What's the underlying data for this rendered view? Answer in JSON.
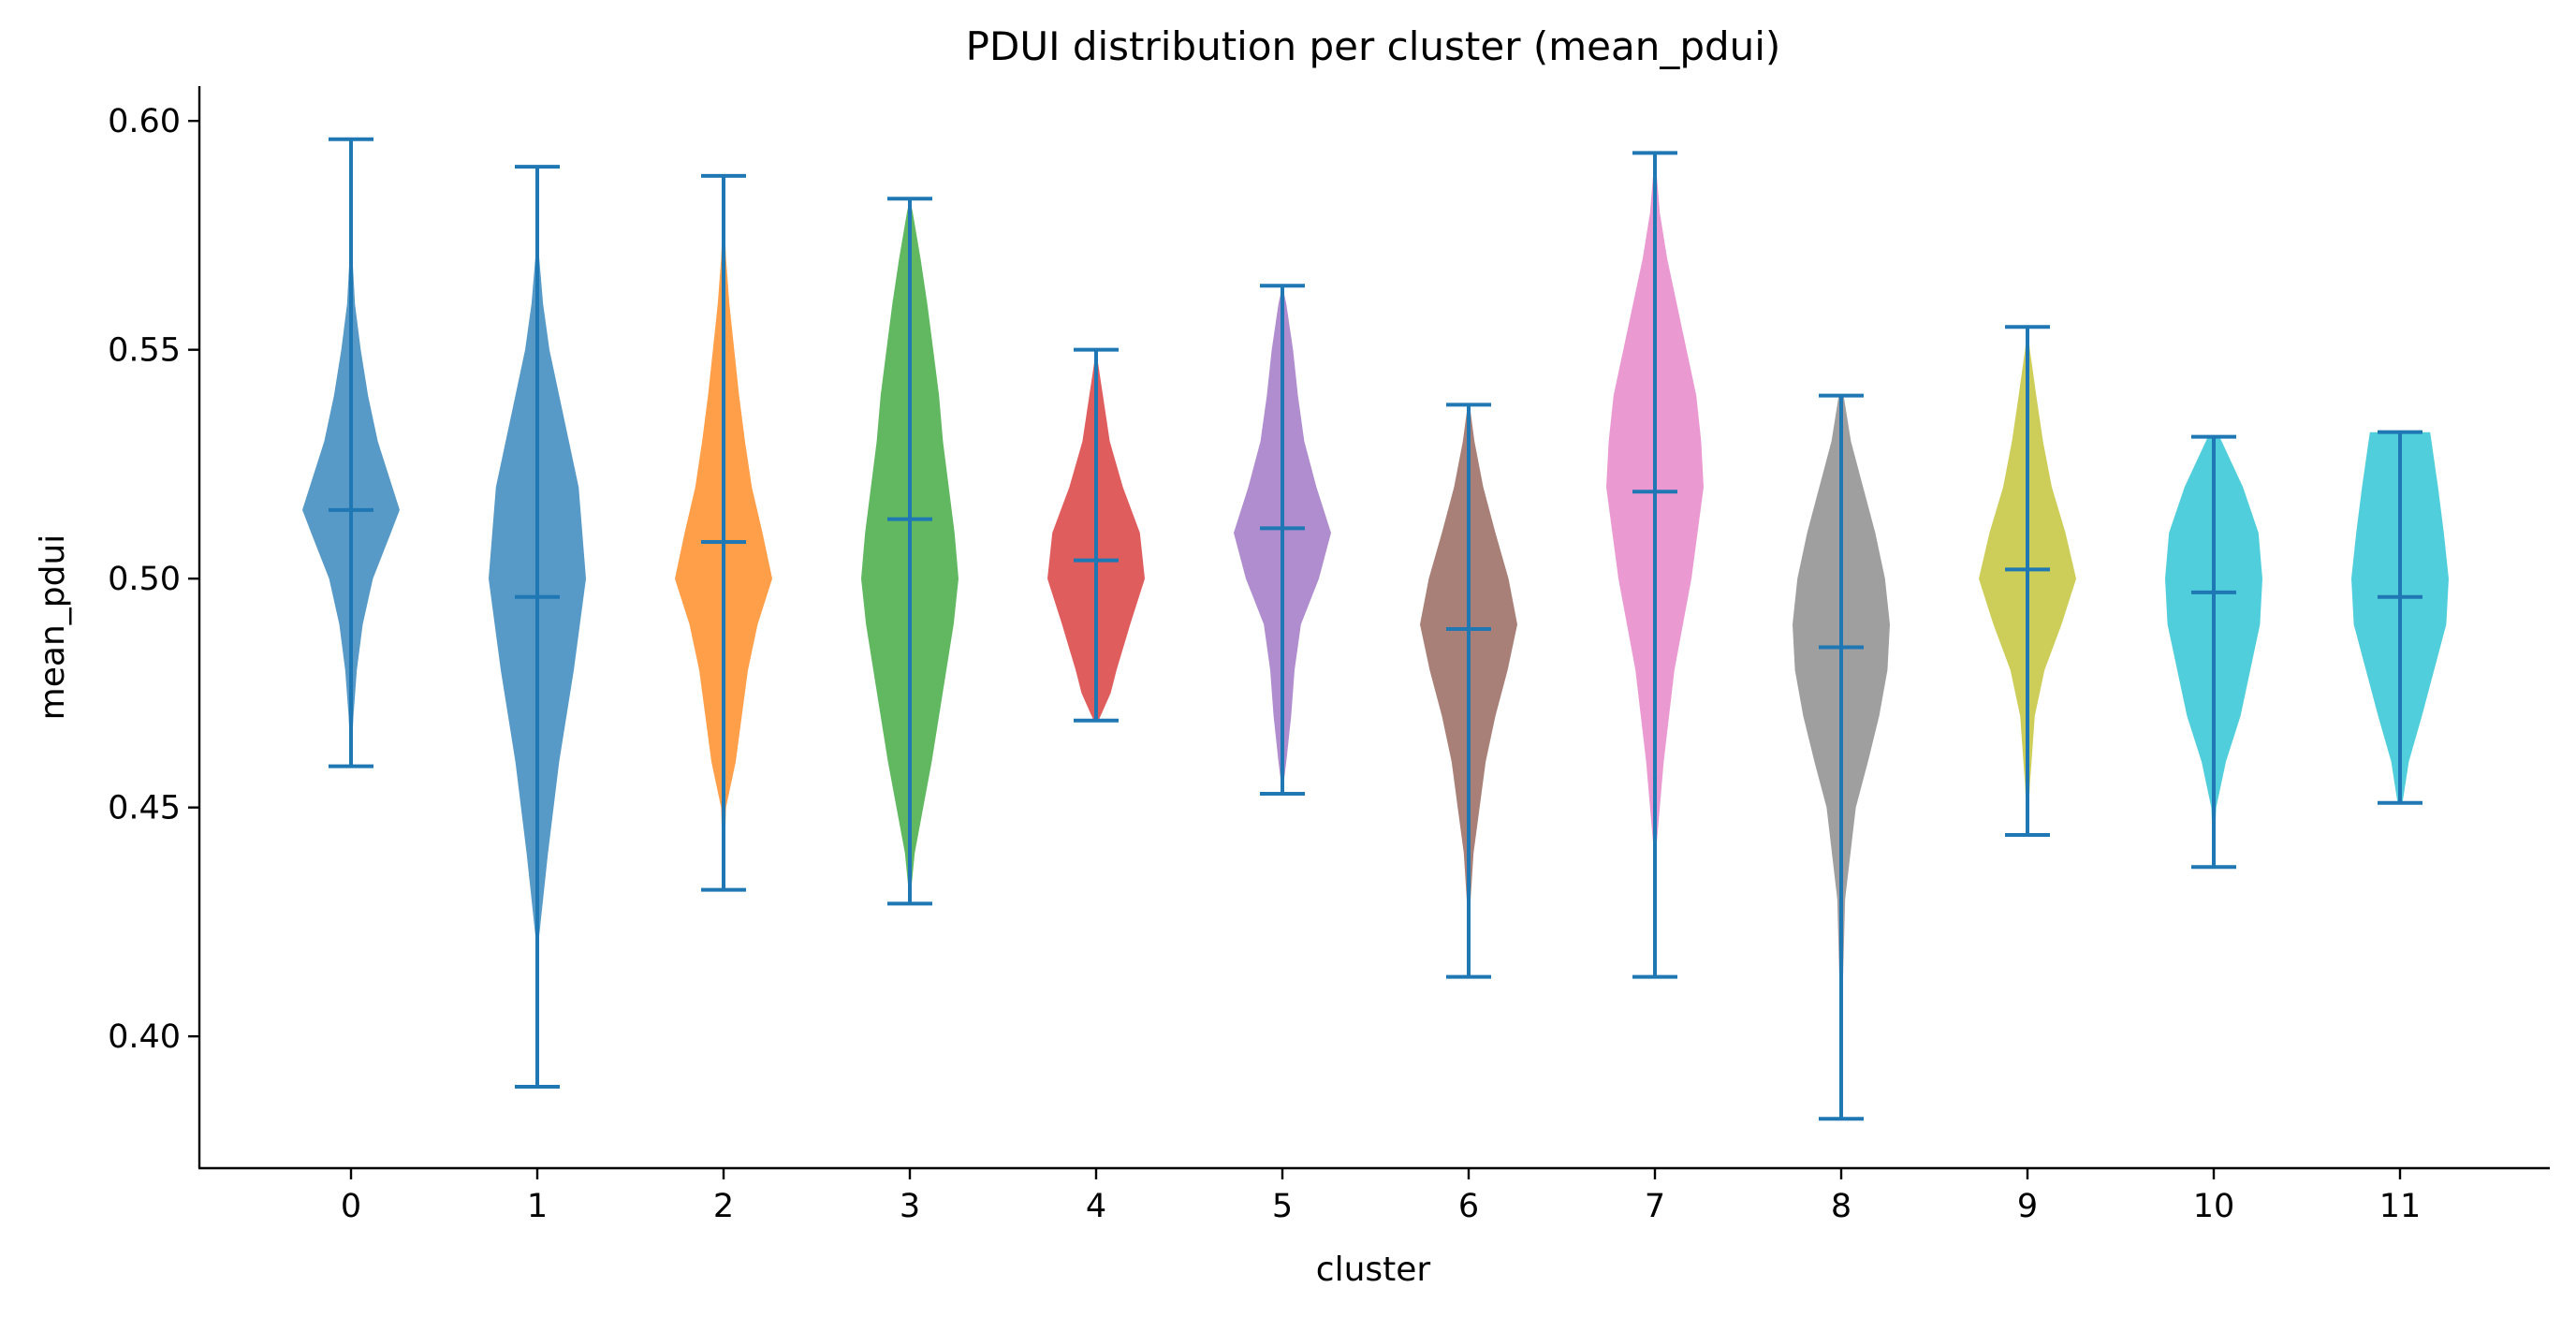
{
  "chart_data": {
    "type": "violin",
    "title": "PDUI distribution per cluster (mean_pdui)",
    "xlabel": "cluster",
    "ylabel": "mean_pdui",
    "ylim": [
      0.3712,
      0.6076
    ],
    "yticks": [
      0.4,
      0.45,
      0.5,
      0.55,
      0.6
    ],
    "ytick_labels": [
      "0.40",
      "0.45",
      "0.50",
      "0.55",
      "0.60"
    ],
    "grid": false,
    "line_color": "#1f77b4",
    "categories": [
      "0",
      "1",
      "2",
      "3",
      "4",
      "5",
      "6",
      "7",
      "8",
      "9",
      "10",
      "11"
    ],
    "series": [
      {
        "cluster": "0",
        "color": "#1f77b4",
        "min": 0.459,
        "max": 0.596,
        "median": 0.515,
        "profile": [
          [
            0.459,
            0.0
          ],
          [
            0.47,
            0.05
          ],
          [
            0.48,
            0.12
          ],
          [
            0.49,
            0.24
          ],
          [
            0.5,
            0.45
          ],
          [
            0.51,
            0.82
          ],
          [
            0.515,
            1.0
          ],
          [
            0.52,
            0.85
          ],
          [
            0.53,
            0.55
          ],
          [
            0.54,
            0.35
          ],
          [
            0.55,
            0.2
          ],
          [
            0.56,
            0.08
          ],
          [
            0.57,
            0.03
          ],
          [
            0.58,
            0.01
          ],
          [
            0.596,
            0.0
          ]
        ]
      },
      {
        "cluster": "1",
        "color": "#1f77b4",
        "min": 0.389,
        "max": 0.59,
        "median": 0.496,
        "profile": [
          [
            0.389,
            0.0
          ],
          [
            0.42,
            0.02
          ],
          [
            0.44,
            0.22
          ],
          [
            0.46,
            0.45
          ],
          [
            0.48,
            0.75
          ],
          [
            0.5,
            1.0
          ],
          [
            0.52,
            0.85
          ],
          [
            0.53,
            0.65
          ],
          [
            0.54,
            0.45
          ],
          [
            0.55,
            0.25
          ],
          [
            0.56,
            0.12
          ],
          [
            0.57,
            0.04
          ],
          [
            0.58,
            0.01
          ],
          [
            0.59,
            0.0
          ]
        ]
      },
      {
        "cluster": "2",
        "color": "#ff7f0e",
        "min": 0.432,
        "max": 0.588,
        "median": 0.508,
        "profile": [
          [
            0.432,
            0.0
          ],
          [
            0.45,
            0.05
          ],
          [
            0.46,
            0.25
          ],
          [
            0.48,
            0.5
          ],
          [
            0.49,
            0.7
          ],
          [
            0.5,
            1.0
          ],
          [
            0.51,
            0.8
          ],
          [
            0.52,
            0.58
          ],
          [
            0.53,
            0.44
          ],
          [
            0.54,
            0.32
          ],
          [
            0.55,
            0.22
          ],
          [
            0.56,
            0.12
          ],
          [
            0.57,
            0.05
          ],
          [
            0.58,
            0.01
          ],
          [
            0.588,
            0.0
          ]
        ]
      },
      {
        "cluster": "3",
        "color": "#2ca02c",
        "min": 0.429,
        "max": 0.583,
        "median": 0.513,
        "profile": [
          [
            0.429,
            0.0
          ],
          [
            0.44,
            0.1
          ],
          [
            0.46,
            0.45
          ],
          [
            0.48,
            0.75
          ],
          [
            0.49,
            0.9
          ],
          [
            0.5,
            1.0
          ],
          [
            0.51,
            0.92
          ],
          [
            0.52,
            0.8
          ],
          [
            0.53,
            0.68
          ],
          [
            0.54,
            0.6
          ],
          [
            0.55,
            0.48
          ],
          [
            0.56,
            0.36
          ],
          [
            0.57,
            0.22
          ],
          [
            0.58,
            0.06
          ],
          [
            0.583,
            0.0
          ]
        ]
      },
      {
        "cluster": "4",
        "color": "#d62728",
        "min": 0.469,
        "max": 0.55,
        "median": 0.504,
        "profile": [
          [
            0.469,
            0.05
          ],
          [
            0.475,
            0.3
          ],
          [
            0.48,
            0.42
          ],
          [
            0.49,
            0.7
          ],
          [
            0.5,
            1.0
          ],
          [
            0.51,
            0.9
          ],
          [
            0.52,
            0.55
          ],
          [
            0.53,
            0.28
          ],
          [
            0.54,
            0.14
          ],
          [
            0.545,
            0.07
          ],
          [
            0.55,
            0.0
          ]
        ]
      },
      {
        "cluster": "5",
        "color": "#9467bd",
        "min": 0.453,
        "max": 0.564,
        "median": 0.511,
        "profile": [
          [
            0.453,
            0.0
          ],
          [
            0.46,
            0.08
          ],
          [
            0.47,
            0.18
          ],
          [
            0.48,
            0.25
          ],
          [
            0.49,
            0.38
          ],
          [
            0.5,
            0.75
          ],
          [
            0.51,
            1.0
          ],
          [
            0.52,
            0.7
          ],
          [
            0.53,
            0.45
          ],
          [
            0.54,
            0.32
          ],
          [
            0.55,
            0.22
          ],
          [
            0.56,
            0.08
          ],
          [
            0.564,
            0.0
          ]
        ]
      },
      {
        "cluster": "6",
        "color": "#8c564b",
        "min": 0.413,
        "max": 0.538,
        "median": 0.489,
        "profile": [
          [
            0.413,
            0.0
          ],
          [
            0.43,
            0.04
          ],
          [
            0.44,
            0.1
          ],
          [
            0.46,
            0.35
          ],
          [
            0.47,
            0.55
          ],
          [
            0.48,
            0.8
          ],
          [
            0.49,
            1.0
          ],
          [
            0.5,
            0.82
          ],
          [
            0.51,
            0.55
          ],
          [
            0.52,
            0.3
          ],
          [
            0.53,
            0.12
          ],
          [
            0.538,
            0.02
          ]
        ]
      },
      {
        "cluster": "7",
        "color": "#e377c2",
        "min": 0.413,
        "max": 0.593,
        "median": 0.519,
        "profile": [
          [
            0.413,
            0.0
          ],
          [
            0.44,
            0.02
          ],
          [
            0.46,
            0.18
          ],
          [
            0.48,
            0.4
          ],
          [
            0.5,
            0.75
          ],
          [
            0.52,
            1.0
          ],
          [
            0.53,
            0.95
          ],
          [
            0.54,
            0.85
          ],
          [
            0.55,
            0.65
          ],
          [
            0.56,
            0.45
          ],
          [
            0.57,
            0.25
          ],
          [
            0.58,
            0.1
          ],
          [
            0.593,
            0.0
          ]
        ]
      },
      {
        "cluster": "8",
        "color": "#7f7f7f",
        "min": 0.382,
        "max": 0.54,
        "median": 0.485,
        "profile": [
          [
            0.382,
            0.0
          ],
          [
            0.41,
            0.03
          ],
          [
            0.43,
            0.08
          ],
          [
            0.45,
            0.3
          ],
          [
            0.46,
            0.55
          ],
          [
            0.47,
            0.78
          ],
          [
            0.48,
            0.95
          ],
          [
            0.49,
            1.0
          ],
          [
            0.5,
            0.9
          ],
          [
            0.51,
            0.7
          ],
          [
            0.52,
            0.45
          ],
          [
            0.53,
            0.2
          ],
          [
            0.54,
            0.05
          ]
        ]
      },
      {
        "cluster": "9",
        "color": "#bcbd22",
        "min": 0.444,
        "max": 0.555,
        "median": 0.502,
        "profile": [
          [
            0.444,
            0.0
          ],
          [
            0.455,
            0.05
          ],
          [
            0.47,
            0.15
          ],
          [
            0.48,
            0.35
          ],
          [
            0.49,
            0.7
          ],
          [
            0.5,
            1.0
          ],
          [
            0.51,
            0.78
          ],
          [
            0.52,
            0.5
          ],
          [
            0.53,
            0.32
          ],
          [
            0.54,
            0.18
          ],
          [
            0.55,
            0.05
          ],
          [
            0.555,
            0.0
          ]
        ]
      },
      {
        "cluster": "10",
        "color": "#17becf",
        "min": 0.437,
        "max": 0.531,
        "median": 0.497,
        "profile": [
          [
            0.437,
            0.0
          ],
          [
            0.45,
            0.05
          ],
          [
            0.46,
            0.25
          ],
          [
            0.47,
            0.55
          ],
          [
            0.48,
            0.75
          ],
          [
            0.49,
            0.95
          ],
          [
            0.5,
            1.0
          ],
          [
            0.51,
            0.92
          ],
          [
            0.52,
            0.6
          ],
          [
            0.531,
            0.12
          ]
        ]
      },
      {
        "cluster": "11",
        "color": "#17becf",
        "min": 0.451,
        "max": 0.532,
        "median": 0.496,
        "profile": [
          [
            0.451,
            0.05
          ],
          [
            0.46,
            0.18
          ],
          [
            0.47,
            0.45
          ],
          [
            0.48,
            0.7
          ],
          [
            0.49,
            0.95
          ],
          [
            0.5,
            1.0
          ],
          [
            0.51,
            0.9
          ],
          [
            0.52,
            0.78
          ],
          [
            0.532,
            0.62
          ]
        ]
      }
    ]
  }
}
